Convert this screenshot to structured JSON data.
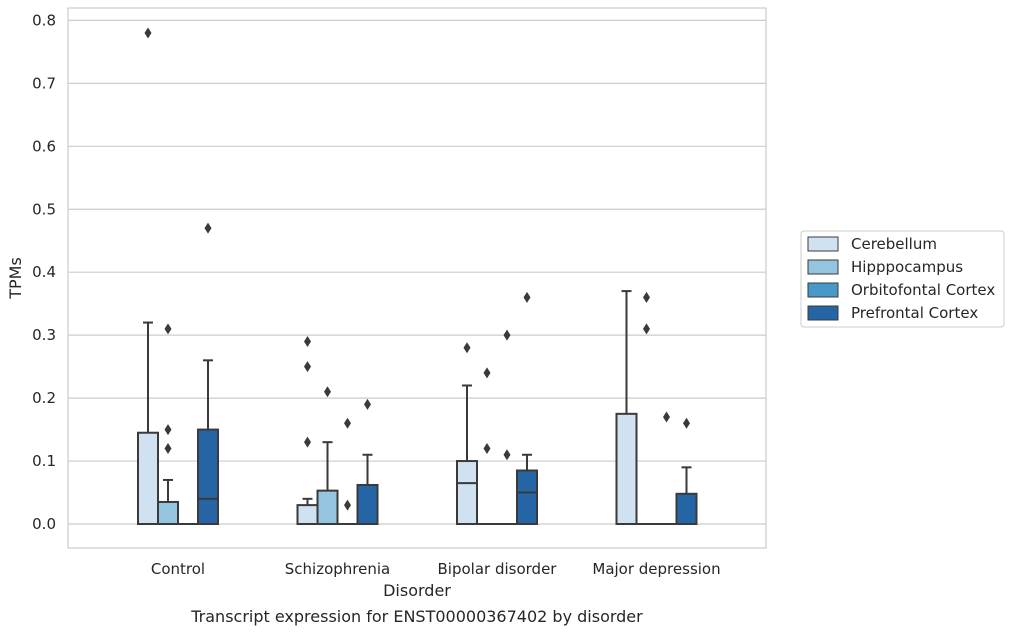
{
  "chart_data": {
    "type": "box",
    "xlabel": "Disorder",
    "ylabel": "TPMs",
    "caption": "Transcript expression for ENST00000367402 by disorder",
    "ylim": [
      -0.04,
      0.82
    ],
    "yticks": [
      "0.0",
      "0.1",
      "0.2",
      "0.3",
      "0.4",
      "0.5",
      "0.6",
      "0.7",
      "0.8"
    ],
    "ytick_values": [
      0,
      0.1,
      0.2,
      0.3,
      0.4,
      0.5,
      0.6,
      0.7,
      0.8
    ],
    "grid": "horizontal",
    "legend_position": "right",
    "categories": [
      "Control",
      "Schizophrenia",
      "Bipolar disorder",
      "Major depression"
    ],
    "series": [
      {
        "name": "Cerebellum",
        "color": "#d0e1f2",
        "boxes": [
          {
            "q1": 0,
            "median": 0,
            "q3": 0.145,
            "whisker_low": 0,
            "whisker_high": 0.32,
            "outliers": [
              0.78
            ]
          },
          {
            "q1": 0,
            "median": 0,
            "q3": 0.03,
            "whisker_low": 0,
            "whisker_high": 0.04,
            "outliers": [
              0.29,
              0.25,
              0.13
            ]
          },
          {
            "q1": 0,
            "median": 0.065,
            "q3": 0.1,
            "whisker_low": 0,
            "whisker_high": 0.22,
            "outliers": [
              0.28
            ]
          },
          {
            "q1": 0,
            "median": 0,
            "q3": 0.175,
            "whisker_low": 0,
            "whisker_high": 0.37,
            "outliers": []
          }
        ]
      },
      {
        "name": "Hipppocampus",
        "color": "#94c4df",
        "boxes": [
          {
            "q1": 0,
            "median": 0,
            "q3": 0.035,
            "whisker_low": 0,
            "whisker_high": 0.07,
            "outliers": [
              0.31,
              0.15,
              0.12
            ]
          },
          {
            "q1": 0,
            "median": 0,
            "q3": 0.053,
            "whisker_low": 0,
            "whisker_high": 0.13,
            "outliers": [
              0.21
            ]
          },
          {
            "q1": 0,
            "median": 0,
            "q3": 0,
            "whisker_low": 0,
            "whisker_high": 0,
            "outliers": [
              0.24,
              0.12
            ]
          },
          {
            "q1": 0,
            "median": 0,
            "q3": 0,
            "whisker_low": 0,
            "whisker_high": 0,
            "outliers": [
              0.36,
              0.31
            ]
          }
        ]
      },
      {
        "name": "Orbitofontal Cortex",
        "color": "#4a98c9",
        "boxes": [
          {
            "q1": 0,
            "median": 0,
            "q3": 0,
            "whisker_low": 0,
            "whisker_high": 0,
            "outliers": []
          },
          {
            "q1": 0,
            "median": 0,
            "q3": 0,
            "whisker_low": 0,
            "whisker_high": 0,
            "outliers": [
              0.16,
              0.03
            ]
          },
          {
            "q1": 0,
            "median": 0,
            "q3": 0,
            "whisker_low": 0,
            "whisker_high": 0,
            "outliers": [
              0.3,
              0.11
            ]
          },
          {
            "q1": 0,
            "median": 0,
            "q3": 0,
            "whisker_low": 0,
            "whisker_high": 0,
            "outliers": [
              0.17
            ]
          }
        ]
      },
      {
        "name": "Prefrontal Cortex",
        "color": "#2565a6",
        "boxes": [
          {
            "q1": 0,
            "median": 0.04,
            "q3": 0.15,
            "whisker_low": 0,
            "whisker_high": 0.26,
            "outliers": [
              0.47
            ]
          },
          {
            "q1": 0,
            "median": 0,
            "q3": 0.062,
            "whisker_low": 0,
            "whisker_high": 0.11,
            "outliers": [
              0.19
            ]
          },
          {
            "q1": 0,
            "median": 0.05,
            "q3": 0.085,
            "whisker_low": 0,
            "whisker_high": 0.11,
            "outliers": [
              0.36
            ]
          },
          {
            "q1": 0,
            "median": 0,
            "q3": 0.048,
            "whisker_low": 0,
            "whisker_high": 0.09,
            "outliers": [
              0.16
            ]
          }
        ]
      }
    ]
  }
}
